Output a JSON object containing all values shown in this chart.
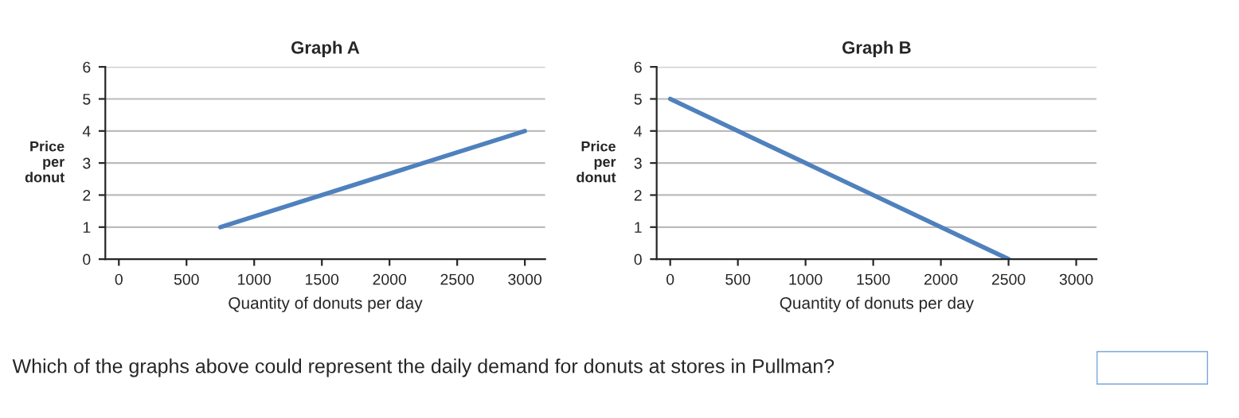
{
  "chart_data": [
    {
      "type": "line",
      "title": "Graph A",
      "xlabel": "Quantity of donuts per day",
      "ylabel": "Price\nper\ndonut",
      "xlim": [
        -100,
        3150
      ],
      "xticks": [
        0,
        500,
        1000,
        1500,
        2000,
        2500,
        3000
      ],
      "ylim": [
        0,
        6
      ],
      "yticks": [
        0,
        1,
        2,
        3,
        4,
        5,
        6
      ],
      "grid": "y",
      "series": [
        {
          "color": "#4f81bd",
          "x": [
            750,
            3000
          ],
          "values": [
            1,
            4
          ]
        }
      ],
      "annotations": [
        "Which of the graphs above could represent the daily demand for donuts at stores in Pullman?"
      ]
    },
    {
      "type": "line",
      "title": "Graph B",
      "xlabel": "Quantity of donuts per day",
      "ylabel": "Price\nper\ndonut",
      "xlim": [
        -100,
        3150
      ],
      "xticks": [
        0,
        500,
        1000,
        1500,
        2000,
        2500,
        3000
      ],
      "ylim": [
        0,
        6
      ],
      "yticks": [
        0,
        1,
        2,
        3,
        4,
        5,
        6
      ],
      "grid": "y",
      "series": [
        {
          "color": "#4f81bd",
          "x": [
            0,
            2500
          ],
          "values": [
            5,
            0
          ]
        }
      ]
    }
  ]
}
